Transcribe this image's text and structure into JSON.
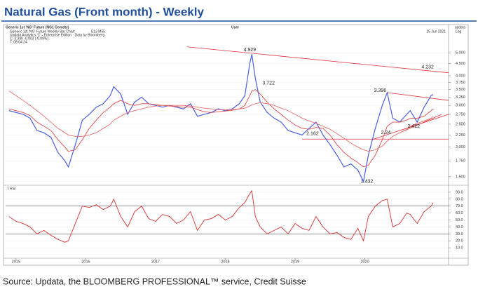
{
  "title": "Natural Gas (Front month) - Weekly",
  "source": "Source: Updata, the BLOOMBERG PROFESSIONAL™ service, Credit Suisse",
  "header": {
    "instrument": "Generic 1st 'NG' Future (NG1 Comdty)",
    "user": "User",
    "brand": "updata",
    "chart_name": "Generic 1st 'NG' Future Weekly Bar Chart",
    "studies": "E13   M55",
    "date": "25 Jun 2021",
    "scale": "Log",
    "credit": "Updata Analytics 'C' - Enterprise Edition · Data by Bloomberg",
    "last": "C: 3.330 -0.003 (-0.09%)",
    "time": "T: 08:04:24"
  },
  "chart_data": [
    {
      "type": "line",
      "log": true,
      "grid": true,
      "xlim": [
        2015.35,
        2021.7
      ],
      "ylim": [
        1.4,
        5.4
      ],
      "yticks": [
        {
          "value": 5,
          "label": "5.000"
        },
        {
          "value": 4.5,
          "label": "4.500"
        },
        {
          "value": 4,
          "label": "4.000"
        },
        {
          "value": 3.75,
          "label": "3.750"
        },
        {
          "value": 3.5,
          "label": "3.500"
        },
        {
          "value": 3.25,
          "label": "3.250"
        },
        {
          "value": 3,
          "label": "3.000"
        },
        {
          "value": 2.75,
          "label": "2.750"
        },
        {
          "value": 2.5,
          "label": "2.500"
        },
        {
          "value": 2.25,
          "label": "2.250"
        },
        {
          "value": 2,
          "label": "2.000"
        },
        {
          "value": 1.75,
          "label": "1.750"
        },
        {
          "value": 1.5,
          "label": "1.500"
        }
      ],
      "x": [
        2015.4,
        2015.5,
        2015.6,
        2015.7,
        2015.8,
        2015.9,
        2016.0,
        2016.1,
        2016.2,
        2016.25,
        2016.35,
        2016.45,
        2016.55,
        2016.65,
        2016.75,
        2016.85,
        2016.9,
        2017.0,
        2017.1,
        2017.2,
        2017.3,
        2017.4,
        2017.5,
        2017.6,
        2017.7,
        2017.8,
        2017.9,
        2018.0,
        2018.1,
        2018.2,
        2018.3,
        2018.4,
        2018.5,
        2018.6,
        2018.7,
        2018.78,
        2018.85,
        2018.88,
        2018.93,
        2019.0,
        2019.1,
        2019.2,
        2019.3,
        2019.4,
        2019.5,
        2019.6,
        2019.7,
        2019.8,
        2019.9,
        2020.0,
        2020.1,
        2020.2,
        2020.3,
        2020.4,
        2020.48,
        2020.55,
        2020.65,
        2020.75,
        2020.82,
        2020.9,
        2021.0,
        2021.1,
        2021.15,
        2021.25,
        2021.35,
        2021.45,
        2021.48
      ],
      "series": [
        {
          "color": "#4a5ee0",
          "width": 1.2,
          "values": [
            2.85,
            2.8,
            2.75,
            2.65,
            2.35,
            2.3,
            2.2,
            1.9,
            1.75,
            1.65,
            2.05,
            2.6,
            2.75,
            2.95,
            3.05,
            3.3,
            3.6,
            3.35,
            2.75,
            3.1,
            3.25,
            3.05,
            3.0,
            2.95,
            3.0,
            2.95,
            2.9,
            3.05,
            2.7,
            2.75,
            2.8,
            2.9,
            2.85,
            2.9,
            3.05,
            3.3,
            4.5,
            4.929,
            3.9,
            3.1,
            2.8,
            2.65,
            2.55,
            2.35,
            2.3,
            2.25,
            2.4,
            2.55,
            2.25,
            2.05,
            1.85,
            1.65,
            1.7,
            1.6,
            1.432,
            1.85,
            2.4,
            3.0,
            3.396,
            2.65,
            2.55,
            2.75,
            2.85,
            2.55,
            2.95,
            3.3,
            3.33
          ]
        },
        {
          "color": "#e04a4a",
          "width": 0.9,
          "values": [
            2.9,
            2.85,
            2.8,
            2.72,
            2.55,
            2.45,
            2.35,
            2.15,
            2.0,
            1.92,
            1.95,
            2.15,
            2.4,
            2.6,
            2.8,
            2.95,
            3.05,
            3.15,
            3.05,
            3.0,
            3.05,
            3.05,
            3.02,
            3.0,
            2.98,
            2.97,
            2.95,
            2.95,
            2.88,
            2.82,
            2.8,
            2.82,
            2.84,
            2.86,
            2.9,
            3.0,
            3.3,
            3.45,
            3.5,
            3.35,
            3.1,
            2.9,
            2.75,
            2.6,
            2.48,
            2.4,
            2.38,
            2.42,
            2.4,
            2.25,
            2.05,
            1.9,
            1.8,
            1.72,
            1.65,
            1.68,
            1.85,
            2.15,
            2.45,
            2.55,
            2.55,
            2.6,
            2.65,
            2.65,
            2.7,
            2.85,
            2.9
          ]
        },
        {
          "color": "#e87070",
          "width": 0.9,
          "values": [
            3.45,
            3.3,
            3.15,
            3.0,
            2.85,
            2.7,
            2.55,
            2.4,
            2.3,
            2.25,
            2.22,
            2.22,
            2.25,
            2.3,
            2.4,
            2.5,
            2.6,
            2.7,
            2.8,
            2.85,
            2.9,
            2.95,
            2.98,
            3.0,
            3.0,
            3.0,
            3.0,
            2.98,
            2.95,
            2.92,
            2.9,
            2.88,
            2.88,
            2.88,
            2.9,
            2.92,
            2.98,
            3.02,
            3.05,
            3.08,
            3.05,
            3.0,
            2.92,
            2.85,
            2.75,
            2.65,
            2.58,
            2.52,
            2.45,
            2.38,
            2.28,
            2.18,
            2.08,
            2.0,
            1.95,
            1.92,
            1.95,
            2.02,
            2.12,
            2.22,
            2.3,
            2.38,
            2.45,
            2.52,
            2.58,
            2.65,
            2.7
          ]
        }
      ],
      "trendlines": [
        {
          "color": "#e0303a",
          "x": [
            2017.95,
            2021.7
          ],
          "values": [
            5.3,
            4.12
          ]
        },
        {
          "color": "#e0303a",
          "x": [
            2020.82,
            2021.7
          ],
          "values": [
            3.396,
            3.15
          ]
        },
        {
          "color": "#e0303a",
          "x": [
            2019.6,
            2021.7
          ],
          "values": [
            2.162,
            2.162
          ]
        },
        {
          "color": "#e0303a",
          "x": [
            2020.6,
            2021.7
          ],
          "values": [
            2.15,
            2.75
          ]
        },
        {
          "color": "#e0303a",
          "x": [
            2021.0,
            2021.6
          ],
          "values": [
            2.3,
            2.75
          ]
        }
      ],
      "annotations": [
        {
          "label": "4.929",
          "x": 2018.85,
          "value": 5.15
        },
        {
          "label": "3.722",
          "x": 2019.12,
          "value": 3.722
        },
        {
          "label": "3.396",
          "x": 2020.72,
          "value": 3.46
        },
        {
          "label": "2.162",
          "x": 2019.75,
          "value": 2.28
        },
        {
          "label": "2.24",
          "x": 2020.8,
          "value": 2.3
        },
        {
          "label": "2.422",
          "x": 2021.2,
          "value": 2.45
        },
        {
          "label": "1.432",
          "x": 2020.53,
          "value": 1.43
        },
        {
          "label": "4.232",
          "x": 2021.4,
          "value": 4.35
        }
      ]
    },
    {
      "type": "line",
      "label": "7 RSI",
      "grid": true,
      "xlim": [
        2015.35,
        2021.7
      ],
      "ylim": [
        -3,
        98
      ],
      "yticks": [
        {
          "value": 90,
          "label": "90.0"
        },
        {
          "value": 80,
          "label": "80.0"
        },
        {
          "value": 70,
          "label": "70.0"
        },
        {
          "value": 60,
          "label": "60.0"
        },
        {
          "value": 50,
          "label": "50.0"
        },
        {
          "value": 40,
          "label": "40.0"
        },
        {
          "value": 30,
          "label": "30.0"
        },
        {
          "value": 20,
          "label": "20.0"
        },
        {
          "value": 10,
          "label": "10.0"
        }
      ],
      "hlines": [
        70,
        30
      ],
      "xticks": [
        {
          "value": 2015.5,
          "label": "2015"
        },
        {
          "value": 2016.5,
          "label": "2016"
        },
        {
          "value": 2017.5,
          "label": "2017"
        },
        {
          "value": 2018.5,
          "label": "2018"
        },
        {
          "value": 2019.5,
          "label": "2019"
        },
        {
          "value": 2020.5,
          "label": "2020"
        }
      ],
      "x": [
        2015.4,
        2015.5,
        2015.6,
        2015.7,
        2015.8,
        2015.9,
        2016.0,
        2016.1,
        2016.2,
        2016.25,
        2016.35,
        2016.45,
        2016.55,
        2016.65,
        2016.75,
        2016.85,
        2016.9,
        2017.0,
        2017.1,
        2017.2,
        2017.3,
        2017.4,
        2017.5,
        2017.6,
        2017.7,
        2017.8,
        2017.9,
        2018.0,
        2018.1,
        2018.2,
        2018.3,
        2018.4,
        2018.5,
        2018.6,
        2018.7,
        2018.78,
        2018.85,
        2018.88,
        2018.93,
        2019.0,
        2019.1,
        2019.2,
        2019.3,
        2019.4,
        2019.5,
        2019.6,
        2019.7,
        2019.8,
        2019.9,
        2020.0,
        2020.1,
        2020.2,
        2020.3,
        2020.4,
        2020.48,
        2020.55,
        2020.65,
        2020.75,
        2020.82,
        2020.9,
        2021.0,
        2021.1,
        2021.15,
        2021.25,
        2021.35,
        2021.45,
        2021.48
      ],
      "series": [
        {
          "color": "#d83030",
          "width": 0.9,
          "values": [
            55,
            48,
            45,
            40,
            30,
            35,
            28,
            22,
            18,
            20,
            45,
            70,
            68,
            72,
            65,
            70,
            80,
            55,
            40,
            62,
            70,
            52,
            48,
            58,
            55,
            45,
            50,
            62,
            35,
            50,
            52,
            58,
            50,
            55,
            68,
            75,
            88,
            92,
            55,
            40,
            30,
            35,
            40,
            30,
            45,
            38,
            35,
            55,
            40,
            30,
            32,
            25,
            22,
            38,
            20,
            55,
            70,
            78,
            80,
            40,
            45,
            60,
            58,
            45,
            62,
            70,
            75
          ]
        }
      ]
    }
  ]
}
